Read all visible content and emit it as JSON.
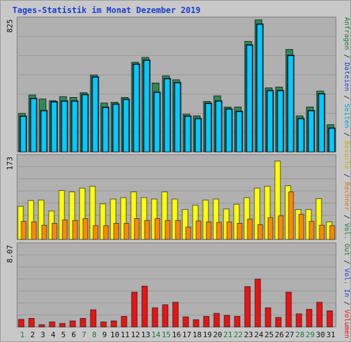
{
  "chart_data": {
    "type": "bar",
    "title": "Tages-Statistik im Monat Dezember 2019",
    "categories": [
      "1",
      "2",
      "3",
      "4",
      "5",
      "6",
      "7",
      "8",
      "9",
      "10",
      "11",
      "12",
      "13",
      "14",
      "15",
      "16",
      "17",
      "18",
      "19",
      "20",
      "21",
      "22",
      "23",
      "24",
      "25",
      "26",
      "27",
      "28",
      "29",
      "30",
      "31"
    ],
    "weekend_days": [
      "1",
      "7",
      "8",
      "14",
      "15",
      "21",
      "22",
      "28",
      "29"
    ],
    "panels": [
      {
        "name": "top",
        "ymax_label": "825",
        "ylim": [
          0,
          825
        ],
        "series": [
          {
            "name": "Anfragen",
            "color": "#2e8b57",
            "values": [
              240,
              355,
              330,
              320,
              345,
              340,
              370,
              480,
              305,
              310,
              340,
              560,
              590,
              430,
              475,
              450,
              235,
              225,
              315,
              350,
              280,
              280,
              690,
              825,
              400,
              405,
              640,
              225,
              280,
              380,
              170
            ]
          },
          {
            "name": "Dateien",
            "color": "#1e56d6",
            "values": [
              225,
              335,
              260,
              315,
              320,
              320,
              360,
              470,
              280,
              300,
              330,
              550,
              575,
              375,
              460,
              435,
              225,
              210,
              305,
              320,
              270,
              255,
              670,
              800,
              385,
              385,
              605,
              210,
              260,
              365,
              150
            ]
          },
          {
            "name": "Seiten",
            "color": "#00ccff",
            "values": [
              225,
              335,
              260,
              315,
              320,
              320,
              360,
              470,
              280,
              300,
              330,
              550,
              575,
              375,
              460,
              435,
              225,
              210,
              305,
              320,
              270,
              255,
              670,
              800,
              385,
              385,
              605,
              210,
              260,
              365,
              150
            ]
          }
        ]
      },
      {
        "name": "middle",
        "ymax_label": "173",
        "ylim": [
          0,
          173
        ],
        "series": [
          {
            "name": "Besuche",
            "color": "#ffff00",
            "values": [
              70,
              82,
              83,
              60,
              103,
              100,
              108,
              112,
              75,
              85,
              88,
              100,
              88,
              85,
              100,
              85,
              63,
              72,
              83,
              85,
              64,
              74,
              88,
              108,
              112,
              165,
              113,
              63,
              63,
              86,
              37
            ]
          },
          {
            "name": "Rechner",
            "color": "#ff8800",
            "values": [
              38,
              37,
              30,
              34,
              41,
              40,
              44,
              29,
              29,
              34,
              34,
              44,
              40,
              44,
              40,
              40,
              26,
              39,
              37,
              36,
              37,
              34,
              43,
              31,
              46,
              50,
              100,
              53,
              38,
              30,
              29
            ]
          }
        ]
      },
      {
        "name": "bottom",
        "ymax_label": "8.07",
        "ylim": [
          0,
          8.07
        ],
        "series": [
          {
            "name": "Volumen",
            "color": "#ee1111",
            "values": [
              0.75,
              0.85,
              0.22,
              0.5,
              0.35,
              0.6,
              0.85,
              1.7,
              0.5,
              0.6,
              1.05,
              3.45,
              4.05,
              1.9,
              2.2,
              2.45,
              1.0,
              0.72,
              1.05,
              1.35,
              1.15,
              1.05,
              4.0,
              4.75,
              1.9,
              0.95,
              3.45,
              1.3,
              1.75,
              2.45,
              1.6
            ]
          }
        ]
      }
    ],
    "right_labels": [
      {
        "text": "Anfragen",
        "color": "#1a7a3a"
      },
      {
        "text": "Dateien",
        "color": "#1a3fd0"
      },
      {
        "text": "Seiten",
        "color": "#00a0d0"
      },
      {
        "text": "Besuche",
        "color": "#c8b400"
      },
      {
        "text": "Rechner",
        "color": "#e07010"
      },
      {
        "text": "Vol. Out",
        "color": "#1a7a3a"
      },
      {
        "text": "Vol. In",
        "color": "#1a3fd0"
      },
      {
        "text": "Volumen",
        "color": "#ee1111"
      }
    ],
    "separator": " / ",
    "grid": true
  }
}
